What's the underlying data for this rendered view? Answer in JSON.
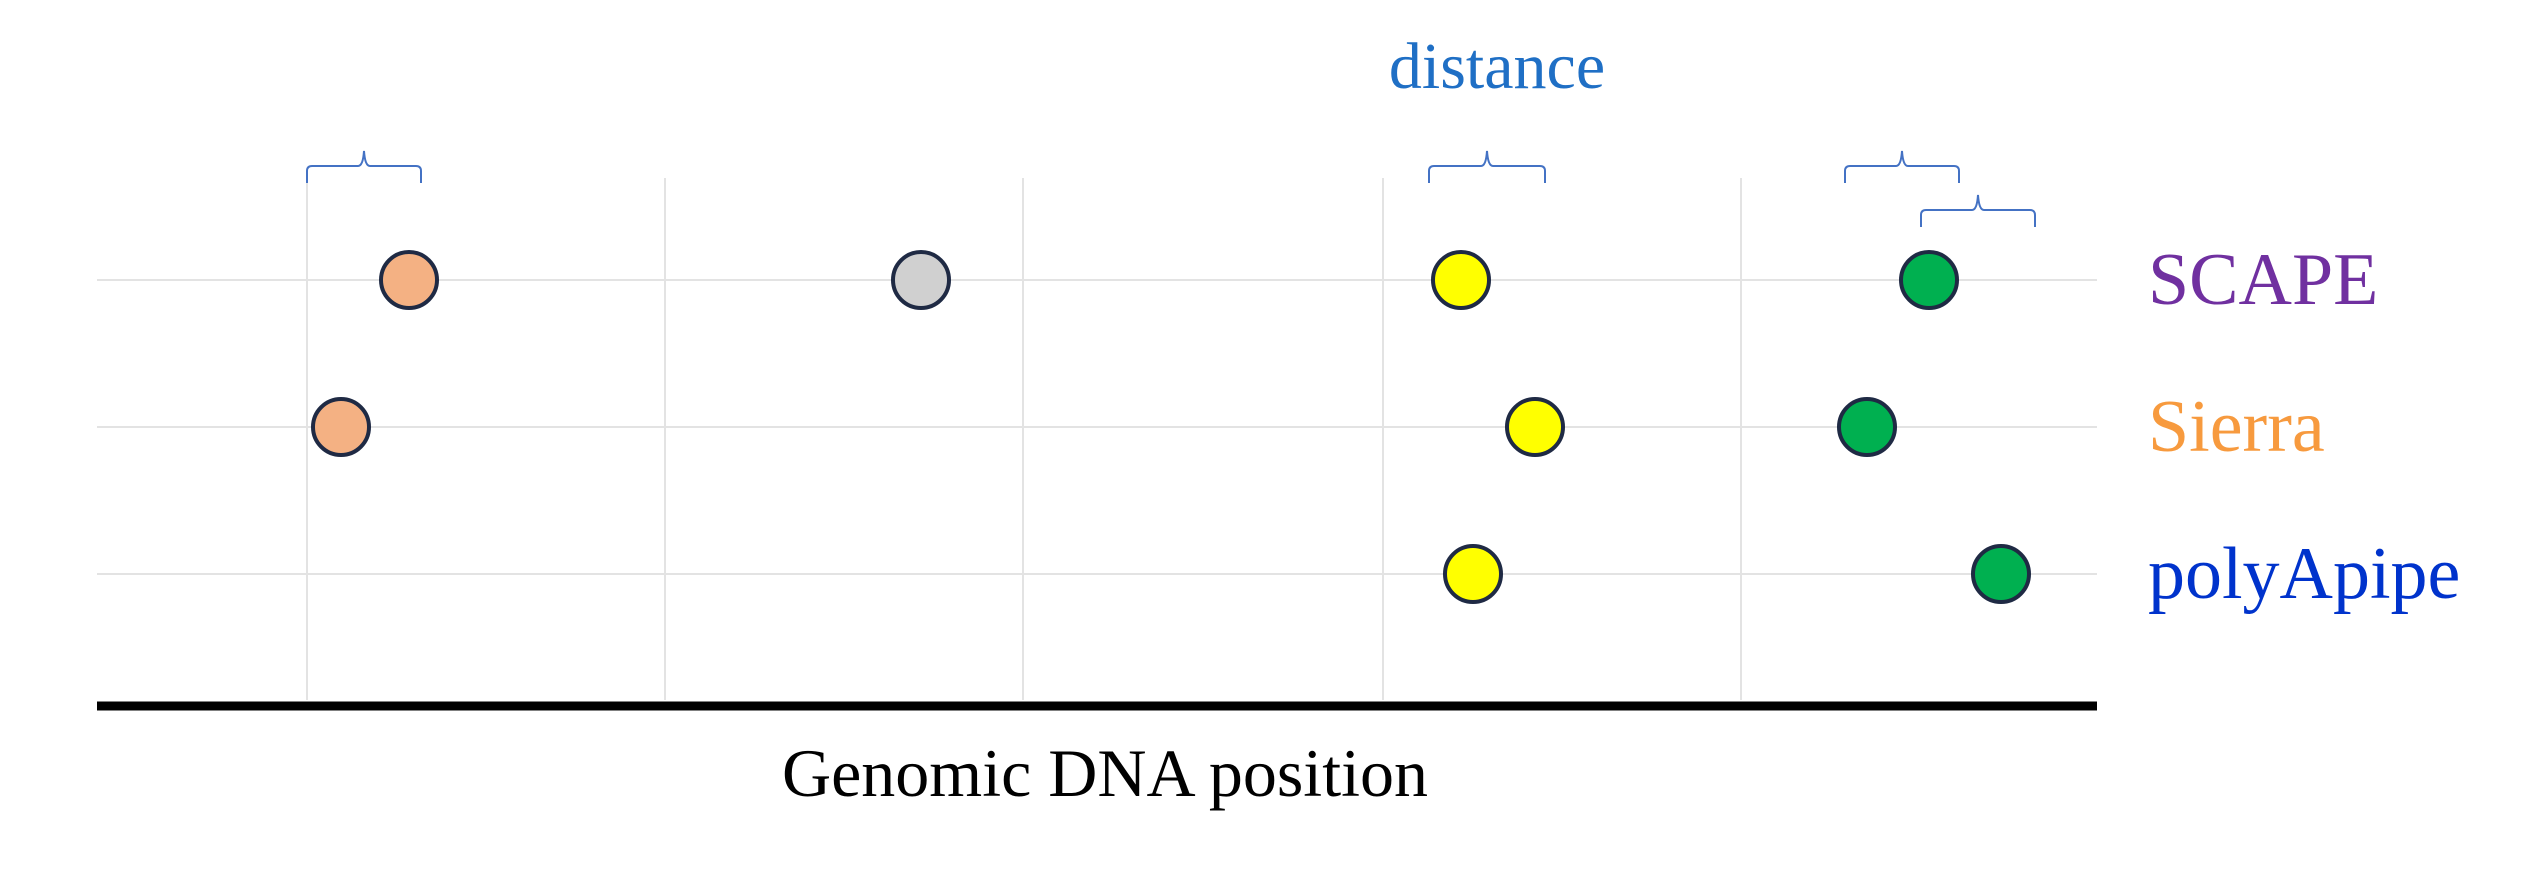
{
  "chart_data": {
    "type": "scatter",
    "title": "",
    "annotation": "distance",
    "xlabel": "Genomic DNA position",
    "ylabel": "",
    "xlim": [
      0,
      100
    ],
    "x_gridlines": [
      10.5,
      28.4,
      46.3,
      64.3,
      82.2
    ],
    "categories": [
      "SCAPE",
      "Sierra",
      "polyApipe"
    ],
    "series": [
      {
        "name": "SCAPE",
        "points": [
          {
            "x": 15.6,
            "color": "#F4B183"
          },
          {
            "x": 41.2,
            "color": "#D0D0D0"
          },
          {
            "x": 68.2,
            "color": "#FFFF00"
          },
          {
            "x": 91.6,
            "color": "#00B050"
          }
        ]
      },
      {
        "name": "Sierra",
        "points": [
          {
            "x": 12.2,
            "color": "#F4B183"
          },
          {
            "x": 71.9,
            "color": "#FFFF00"
          },
          {
            "x": 88.5,
            "color": "#00B050"
          }
        ]
      },
      {
        "name": "polyApipe",
        "points": [
          {
            "x": 68.8,
            "color": "#FFFF00"
          },
          {
            "x": 95.2,
            "color": "#00B050"
          }
        ]
      }
    ],
    "distance_brackets": [
      {
        "from": 10.5,
        "to": 16.2
      },
      {
        "from": 66.6,
        "to": 72.4
      },
      {
        "from": 87.4,
        "to": 93.1
      },
      {
        "from": 91.2,
        "to": 96.9
      }
    ]
  },
  "colors": {
    "SCAPE": "#7030A0",
    "Sierra": "#F79A3E",
    "polyApipe": "#0033CC",
    "annotation": "#1F6FC5",
    "bracket": "#4472C4",
    "grid": "#E3E3E3",
    "axis": "#000000",
    "marker_edge": "#1F2A44"
  }
}
